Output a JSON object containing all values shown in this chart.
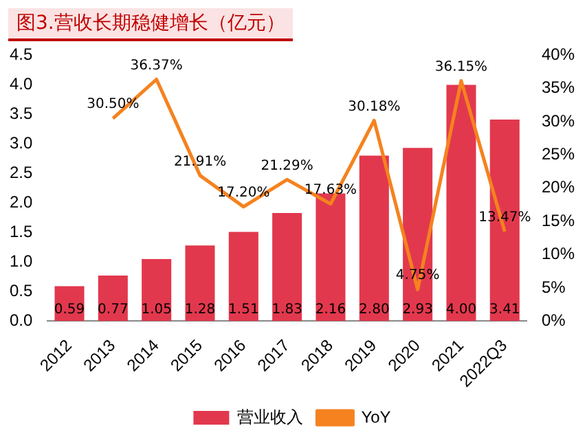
{
  "chart_data": {
    "type": "bar",
    "title": "图3.营收长期稳健增长（亿元）",
    "categories": [
      "2012",
      "2013",
      "2014",
      "2015",
      "2016",
      "2017",
      "2018",
      "2019",
      "2020",
      "2021",
      "2022Q3"
    ],
    "series": [
      {
        "name": "营业收入",
        "color": "#e2384d",
        "values": [
          0.59,
          0.77,
          1.05,
          1.28,
          1.51,
          1.83,
          2.16,
          2.8,
          2.93,
          4.0,
          3.41
        ],
        "value_labels": [
          "0.59",
          "0.77",
          "1.05",
          "1.28",
          "1.51",
          "1.83",
          "2.16",
          "2.80",
          "2.93",
          "4.00",
          "3.41"
        ]
      },
      {
        "name": "YoY",
        "type": "line",
        "axis": "y2",
        "color": "#f5821f",
        "values": [
          null,
          30.5,
          36.37,
          21.91,
          17.2,
          21.29,
          17.63,
          30.18,
          4.75,
          36.15,
          13.47
        ],
        "value_labels": [
          null,
          "30.50%",
          "36.37%",
          "21.91%",
          "17.20%",
          "21.29%",
          "17.63%",
          "30.18%",
          "4.75%",
          "36.15%",
          "13.47%"
        ]
      }
    ],
    "ylim": [
      0,
      4.5
    ],
    "yticks": [
      {
        "value": 0,
        "label": "0.0"
      },
      {
        "value": 0.5,
        "label": "0.5"
      },
      {
        "value": 1,
        "label": "1.0"
      },
      {
        "value": 1.5,
        "label": "1.5"
      },
      {
        "value": 2,
        "label": "2.0"
      },
      {
        "value": 2.5,
        "label": "2.5"
      },
      {
        "value": 3,
        "label": "3.0"
      },
      {
        "value": 3.5,
        "label": "3.5"
      },
      {
        "value": 4,
        "label": "4.0"
      },
      {
        "value": 4.5,
        "label": "4.5"
      }
    ],
    "y2lim": [
      0,
      40
    ],
    "y2ticks": [
      {
        "value": 0,
        "label": "0%"
      },
      {
        "value": 5,
        "label": "5%"
      },
      {
        "value": 10,
        "label": "10%"
      },
      {
        "value": 15,
        "label": "15%"
      },
      {
        "value": 20,
        "label": "20%"
      },
      {
        "value": 25,
        "label": "25%"
      },
      {
        "value": 30,
        "label": "30%"
      },
      {
        "value": 35,
        "label": "35%"
      },
      {
        "value": 40,
        "label": "40%"
      }
    ],
    "legend": "bottom",
    "grid": false,
    "marker": "none"
  }
}
